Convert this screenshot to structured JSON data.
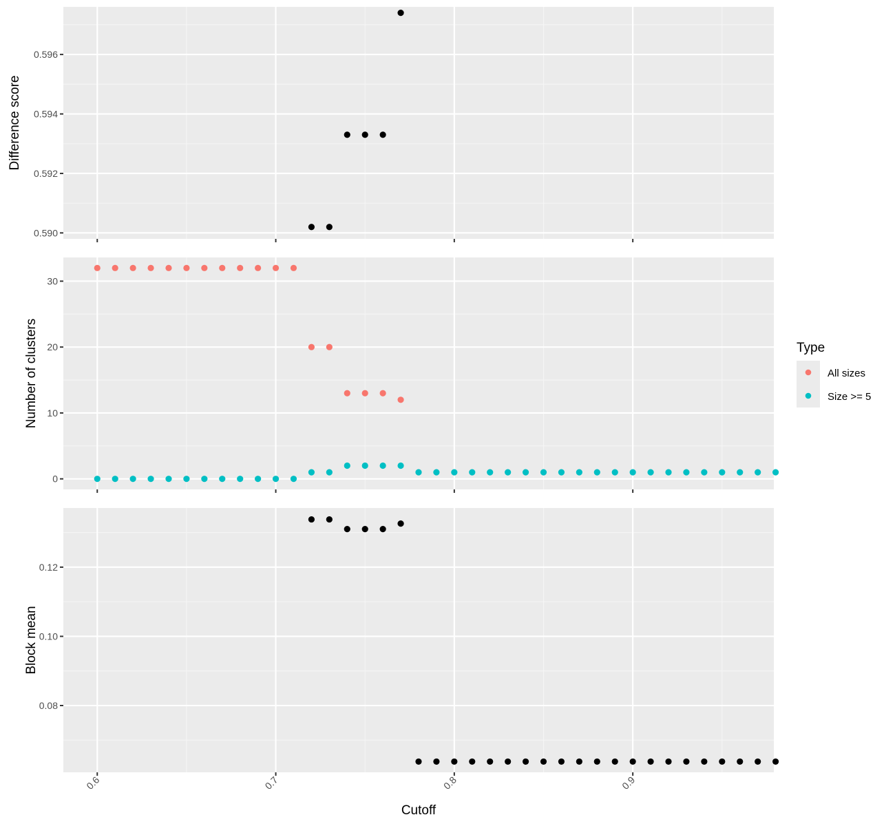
{
  "chart_data": [
    {
      "type": "scatter",
      "ylabel": "Difference score",
      "xlim": [
        0.581,
        0.979
      ],
      "ylim": [
        0.5898,
        0.5976
      ],
      "xticks": [
        0.6,
        0.7,
        0.8,
        0.9
      ],
      "yticks": [
        0.59,
        0.592,
        0.594,
        0.596
      ],
      "ytick_labels": [
        "0.590",
        "0.592",
        "0.594",
        "0.596"
      ],
      "show_x_tick_labels": false,
      "series": [
        {
          "color": "#000000",
          "x": [
            0.72,
            0.73,
            0.74,
            0.75,
            0.76,
            0.77
          ],
          "y": [
            0.5902,
            0.5902,
            0.5933,
            0.5933,
            0.5933,
            0.5974
          ]
        }
      ]
    },
    {
      "type": "scatter",
      "ylabel": "Number of clusters",
      "xlim": [
        0.581,
        0.979
      ],
      "ylim": [
        -1.6,
        33.6
      ],
      "xticks": [
        0.6,
        0.7,
        0.8,
        0.9
      ],
      "yticks": [
        0,
        10,
        20,
        30
      ],
      "ytick_labels": [
        "0",
        "10",
        "20",
        "30"
      ],
      "show_x_tick_labels": false,
      "series": [
        {
          "name": "All sizes",
          "color": "#F8766D",
          "x": [
            0.6,
            0.61,
            0.62,
            0.63,
            0.64,
            0.65,
            0.66,
            0.67,
            0.68,
            0.69,
            0.7,
            0.71,
            0.72,
            0.73,
            0.74,
            0.75,
            0.76,
            0.77
          ],
          "y": [
            32,
            32,
            32,
            32,
            32,
            32,
            32,
            32,
            32,
            32,
            32,
            32,
            20,
            20,
            13,
            13,
            13,
            12
          ]
        },
        {
          "name": "Size >= 5",
          "color": "#00BFC4",
          "x": [
            0.6,
            0.61,
            0.62,
            0.63,
            0.64,
            0.65,
            0.66,
            0.67,
            0.68,
            0.69,
            0.7,
            0.71,
            0.72,
            0.73,
            0.74,
            0.75,
            0.76,
            0.77,
            0.78,
            0.79,
            0.8,
            0.81,
            0.82,
            0.83,
            0.84,
            0.85,
            0.86,
            0.87,
            0.88,
            0.89,
            0.9,
            0.91,
            0.92,
            0.93,
            0.94,
            0.95,
            0.96,
            0.97,
            0.98
          ],
          "y": [
            0,
            0,
            0,
            0,
            0,
            0,
            0,
            0,
            0,
            0,
            0,
            0,
            1,
            1,
            2,
            2,
            2,
            2,
            1,
            1,
            1,
            1,
            1,
            1,
            1,
            1,
            1,
            1,
            1,
            1,
            1,
            1,
            1,
            1,
            1,
            1,
            1,
            1,
            1
          ]
        }
      ]
    },
    {
      "type": "scatter",
      "ylabel": "Block mean",
      "xlabel": "Cutoff",
      "xlim": [
        0.581,
        0.979
      ],
      "ylim": [
        0.0607,
        0.1371
      ],
      "xticks": [
        0.6,
        0.7,
        0.8,
        0.9
      ],
      "xtick_labels": [
        "0.6",
        "0.7",
        "0.8",
        "0.9"
      ],
      "yticks": [
        0.08,
        0.1,
        0.12
      ],
      "ytick_labels": [
        "0.08",
        "0.10",
        "0.12"
      ],
      "show_x_tick_labels": true,
      "series": [
        {
          "color": "#000000",
          "x": [
            0.72,
            0.73,
            0.74,
            0.75,
            0.76,
            0.77,
            0.78,
            0.79,
            0.8,
            0.81,
            0.82,
            0.83,
            0.84,
            0.85,
            0.86,
            0.87,
            0.88,
            0.89,
            0.9,
            0.91,
            0.92,
            0.93,
            0.94,
            0.95,
            0.96,
            0.97,
            0.98
          ],
          "y": [
            0.1338,
            0.1338,
            0.131,
            0.131,
            0.131,
            0.1326,
            0.0638,
            0.0638,
            0.0638,
            0.0638,
            0.0638,
            0.0638,
            0.0638,
            0.0638,
            0.0638,
            0.0638,
            0.0638,
            0.0638,
            0.0638,
            0.0638,
            0.0638,
            0.0638,
            0.0638,
            0.0638,
            0.0638,
            0.0638,
            0.0638
          ]
        }
      ]
    }
  ],
  "legend": {
    "title": "Type",
    "items": [
      {
        "label": "All sizes",
        "color": "#F8766D"
      },
      {
        "label": "Size >= 5",
        "color": "#00BFC4"
      }
    ]
  }
}
